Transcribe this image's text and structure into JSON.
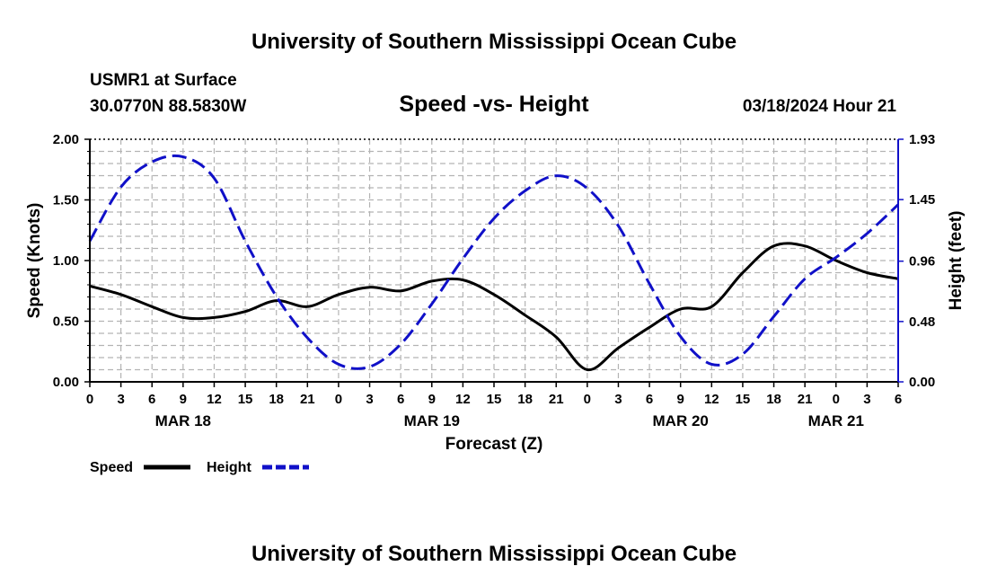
{
  "page_title": "University of Southern Mississippi Ocean Cube",
  "footer_title": "University of Southern Mississippi Ocean Cube",
  "station": {
    "name": "USMR1 at Surface",
    "coords": "30.0770N  88.5830W",
    "datetime": "03/18/2024 Hour 21"
  },
  "legend": {
    "speed_label": "Speed",
    "height_label": "Height"
  },
  "colors": {
    "speed": "#000000",
    "height": "#1010c8",
    "grid": "#b4b4b4"
  },
  "chart_data": {
    "type": "line",
    "title": "Speed -vs- Height",
    "xlabel": "Forecast (Z)",
    "ylabel_left": "Speed (Knots)",
    "ylabel_right": "Height (feet)",
    "x_hours_from_start": [
      0,
      78
    ],
    "ylim_left": [
      0,
      2.0
    ],
    "ylim_right": [
      0,
      1.93
    ],
    "left_ticks": [
      "0.00",
      "0.50",
      "1.00",
      "1.50",
      "2.00"
    ],
    "left_tick_values": [
      0,
      0.5,
      1.0,
      1.5,
      2.0
    ],
    "right_ticks": [
      "0.00",
      "0.48",
      "0.96",
      "1.45",
      "1.93"
    ],
    "right_tick_values": [
      0,
      0.48,
      0.96,
      1.45,
      1.93
    ],
    "x_ticks": [
      "0",
      "3",
      "6",
      "9",
      "12",
      "15",
      "18",
      "21",
      "0",
      "3",
      "6",
      "9",
      "12",
      "15",
      "18",
      "21",
      "0",
      "3",
      "6",
      "9",
      "12",
      "15",
      "18",
      "21",
      "0",
      "3",
      "6"
    ],
    "date_labels": [
      {
        "label": "MAR 18",
        "hour": 9
      },
      {
        "label": "MAR 19",
        "hour": 33
      },
      {
        "label": "MAR 20",
        "hour": 57
      },
      {
        "label": "MAR 21",
        "hour": 72
      }
    ],
    "grid": true,
    "series": [
      {
        "name": "Speed",
        "axis": "left",
        "style": "solid",
        "x": [
          0,
          3,
          6,
          9,
          12,
          15,
          18,
          21,
          24,
          27,
          30,
          33,
          36,
          39,
          42,
          45,
          48,
          51,
          54,
          57,
          60,
          63,
          66,
          69,
          72,
          75,
          78
        ],
        "y": [
          0.79,
          0.72,
          0.62,
          0.53,
          0.53,
          0.58,
          0.67,
          0.62,
          0.72,
          0.78,
          0.75,
          0.83,
          0.84,
          0.72,
          0.55,
          0.37,
          0.1,
          0.28,
          0.45,
          0.6,
          0.62,
          0.9,
          1.12,
          1.12,
          1.0,
          0.9,
          0.85
        ]
      },
      {
        "name": "Height",
        "axis": "right",
        "style": "dashed",
        "x": [
          0,
          3,
          6,
          9,
          12,
          15,
          18,
          21,
          24,
          27,
          30,
          33,
          36,
          39,
          42,
          45,
          48,
          51,
          54,
          57,
          60,
          63,
          66,
          69,
          72,
          75,
          78
        ],
        "y": [
          1.12,
          1.55,
          1.75,
          1.79,
          1.62,
          1.12,
          0.68,
          0.35,
          0.14,
          0.12,
          0.3,
          0.62,
          0.98,
          1.3,
          1.52,
          1.64,
          1.54,
          1.24,
          0.78,
          0.36,
          0.14,
          0.22,
          0.52,
          0.82,
          0.99,
          1.18,
          1.41
        ]
      }
    ]
  }
}
